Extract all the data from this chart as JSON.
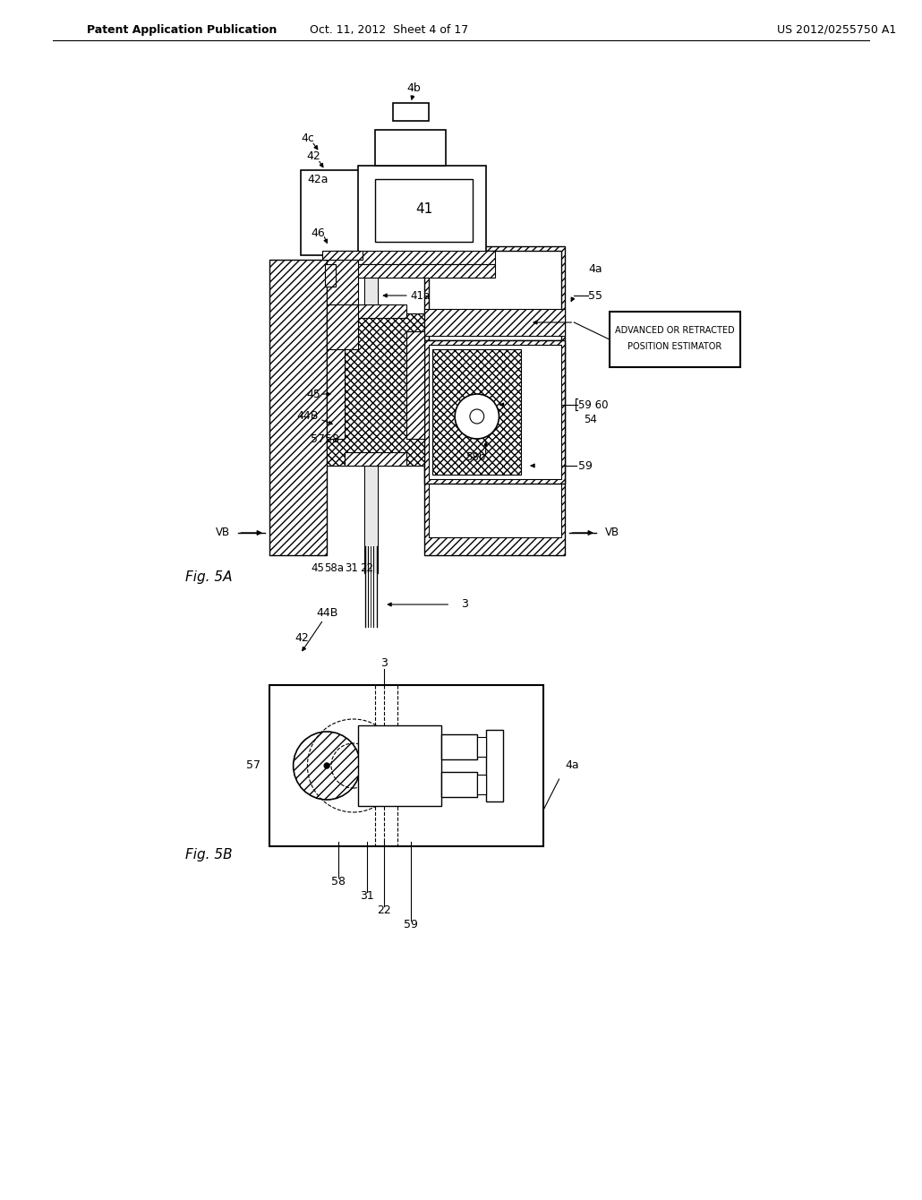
{
  "bg": "#ffffff",
  "hdr_left": "Patent Application Publication",
  "hdr_mid": "Oct. 11, 2012  Sheet 4 of 17",
  "hdr_right": "US 2012/0255750 A1",
  "fig5a": "Fig. 5A",
  "fig5b": "Fig. 5B",
  "estimator_line1": "ADVANCED OR RETRACTED",
  "estimator_line2": "POSITION ESTIMATOR"
}
